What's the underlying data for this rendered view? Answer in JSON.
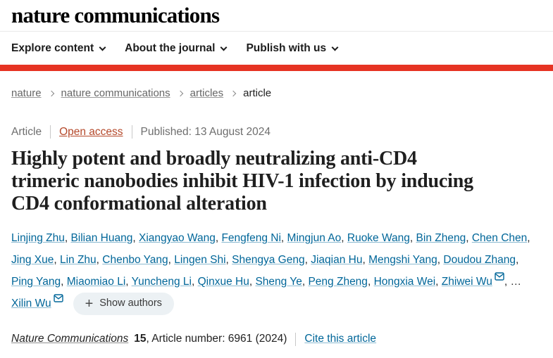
{
  "colors": {
    "accent_red": "#e63323",
    "link_blue": "#006699",
    "open_access": "#b5492b",
    "text_dark": "#222222",
    "text_gray": "#666666"
  },
  "header": {
    "logo": "nature communications",
    "nav": [
      {
        "label": "Explore content"
      },
      {
        "label": "About the journal"
      },
      {
        "label": "Publish with us"
      }
    ]
  },
  "breadcrumb": {
    "items": [
      {
        "label": "nature",
        "link": true
      },
      {
        "label": "nature communications",
        "link": true
      },
      {
        "label": "articles",
        "link": true
      },
      {
        "label": "article",
        "link": false
      }
    ]
  },
  "article_meta": {
    "type": "Article",
    "access": "Open access",
    "published": "Published: 13 August 2024"
  },
  "title": "Highly potent and broadly neutralizing anti-CD4 trimeric nanobodies inhibit HIV-1 infection by inducing CD4 conformational alteration",
  "title_lines": [
    "Highly potent and broadly neutralizing anti-CD4",
    "trimeric nanobodies inhibit HIV-1 infection by inducing",
    "CD4 conformational alteration"
  ],
  "authors": {
    "list": [
      {
        "name": "Linjing Zhu"
      },
      {
        "name": "Bilian Huang"
      },
      {
        "name": "Xiangyao Wang"
      },
      {
        "name": "Fengfeng Ni"
      },
      {
        "name": "Mingjun Ao"
      },
      {
        "name": "Ruoke Wang"
      },
      {
        "name": "Bin Zheng"
      },
      {
        "name": "Chen Chen",
        "break_after": true
      },
      {
        "name": "Jing Xue"
      },
      {
        "name": "Lin Zhu"
      },
      {
        "name": "Chenbo Yang"
      },
      {
        "name": "Lingen Shi"
      },
      {
        "name": "Shengya Geng"
      },
      {
        "name": "Jiaqian Hu"
      },
      {
        "name": "Mengshi Yang"
      },
      {
        "name": "Doudou Zhang",
        "break_after": true
      },
      {
        "name": "Ping Yang"
      },
      {
        "name": "Miaomiao Li"
      },
      {
        "name": "Yuncheng Li"
      },
      {
        "name": "Qinxue Hu"
      },
      {
        "name": "Sheng Ye"
      },
      {
        "name": "Peng Zheng"
      },
      {
        "name": "Hongxia Wei"
      },
      {
        "name": "Zhiwei Wu",
        "envelope": true
      }
    ],
    "ellipsis": "…",
    "last_author": {
      "name": "Xilin Wu",
      "envelope": true
    },
    "show_authors_label": "Show authors",
    "plus_glyph": "+"
  },
  "citation": {
    "journal": "Nature Communications",
    "volume": "15",
    "article_info": ", Article number: 6961 (2024)",
    "cite_link": "Cite this article"
  }
}
